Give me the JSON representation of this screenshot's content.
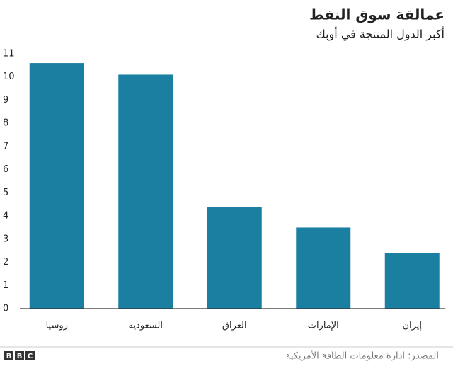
{
  "chart_data": {
    "type": "bar",
    "title": "عمالقة سوق النفط",
    "subtitle": "أكبر الدول المنتجة في أوبك",
    "categories": [
      "روسيا",
      "السعودية",
      "العراق",
      "الإمارات",
      "إيران"
    ],
    "values": [
      10.6,
      10.1,
      4.4,
      3.5,
      2.4
    ],
    "color": "#1a7fa1",
    "ylim": [
      0,
      11
    ],
    "yticks": [
      0,
      1,
      2,
      3,
      4,
      5,
      6,
      7,
      8,
      9,
      10,
      11
    ],
    "grid": false,
    "source": "المصدر: ادارة معلومات الطاقة الأمريكية",
    "logo": [
      "B",
      "B",
      "C"
    ]
  }
}
